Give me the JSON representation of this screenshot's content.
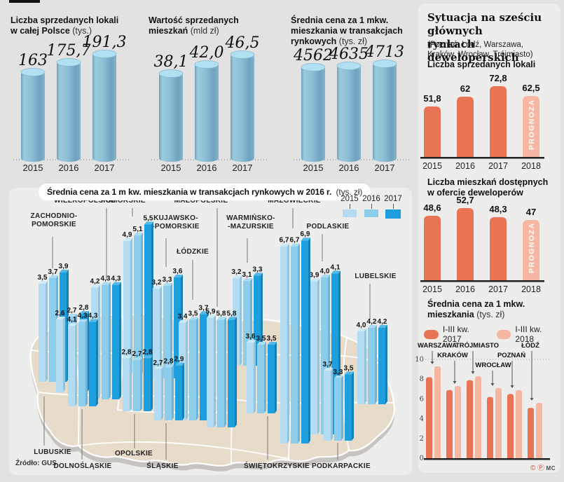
{
  "colors": {
    "page_bg": "#e2e2e2",
    "card_bg": "#ededec",
    "land": "#e7dbc9",
    "land_side": "#c7c4bf",
    "cylinder_body": "#84b6d0",
    "cylinder_top": "#b0e0f2",
    "orange": "#e87355",
    "orange_light": "#f6b7a2",
    "blue_2015": "#b3dcf2",
    "blue_2016": "#8dcdec",
    "blue_2017": "#1d9fdd"
  },
  "panel": {
    "title_lines": [
      "Sytuacja na sześciu głównych",
      "rynkach deweloperskich"
    ],
    "subtitle_lines": [
      "(Poznań, Łódź, Warszawa,",
      "Kraków, Wrocław, Trójmiasto)"
    ],
    "prognoza": "PROGNOZA",
    "credit_marks": [
      "©",
      "Ⓟ"
    ],
    "credit": "MC"
  },
  "chart_data": {
    "national": [
      {
        "type": "bar",
        "title_lines": [
          "Liczba sprzedanych lokali",
          "w całej Polsce"
        ],
        "unit": "(tys.)",
        "categories": [
          "2015",
          "2016",
          "2017"
        ],
        "values": [
          163,
          175.7,
          191.3
        ],
        "labels": [
          "163",
          "175,7",
          "191,3"
        ],
        "x": 15,
        "cx": [
          47,
          98,
          149
        ],
        "heights": [
          125,
          139,
          151
        ]
      },
      {
        "type": "bar",
        "title_lines": [
          "Wartość sprzedanych",
          "mieszkań"
        ],
        "unit": "(mld zł)",
        "categories": [
          "2015",
          "2016",
          "2017"
        ],
        "values": [
          38.1,
          42.0,
          46.5
        ],
        "labels": [
          "38,1",
          "42,0",
          "46,5"
        ],
        "x": 212,
        "cx": [
          244,
          295,
          346
        ],
        "heights": [
          123,
          136,
          150
        ]
      },
      {
        "type": "bar",
        "title_lines": [
          "Średnia cena za 1 mkw.",
          "mieszkania w transakcjach",
          "rynkowych"
        ],
        "unit": "(tys. zł)",
        "categories": [
          "2015",
          "2016",
          "2017"
        ],
        "values": [
          4562,
          4635,
          4713
        ],
        "labels": [
          "4562",
          "4635",
          "4713"
        ],
        "x": 415,
        "cx": [
          447,
          498,
          549
        ],
        "heights": [
          132,
          134,
          137
        ]
      }
    ],
    "map_regional": {
      "type": "bar",
      "title": "Średnia cena za 1 m kw. mieszkania w transakcjach rynkowych w 2016 r.",
      "unit": "(tys. zł)",
      "source": "Źródło: GUS",
      "legend_years": [
        "2015",
        "2016",
        "2017"
      ],
      "regions": [
        {
          "name_lines": [
            "ZACHODNIO-",
            "POMORSKIE"
          ],
          "label_x": 77,
          "label_y": 311,
          "leader": [
            75,
            338,
            383
          ],
          "x": 55,
          "base": 545,
          "scale": 40,
          "values": [
            3.5,
            3.7,
            3.9
          ],
          "labels": [
            "3,5",
            "3,7",
            "3,9"
          ]
        },
        {
          "name_lines": [
            "POMORSKIE"
          ],
          "label_x": 176,
          "label_y": 289,
          "leader": [
            189,
            297,
            309
          ],
          "x": 176,
          "base": 535,
          "scale": 39,
          "values": [
            4.9,
            5.1,
            5.5
          ],
          "labels": [
            "4,9",
            "5,1",
            "5,5"
          ]
        },
        {
          "name_lines": [
            "WIELKOPOLSKIE"
          ],
          "label_x": 121,
          "label_y": 289,
          "leader": [
            152,
            297,
            399
          ],
          "x": 130,
          "base": 570,
          "scale": 38,
          "values": [
            4.2,
            4.3,
            4.3
          ],
          "labels": [
            "4,2",
            "4,3",
            "4,3"
          ]
        },
        {
          "name_lines": [
            "KUJAWSKO-",
            "-POMORSKIE"
          ],
          "label_x": 251,
          "label_y": 314,
          "leader": [
            237,
            340,
            381
          ],
          "x": 218,
          "base": 540,
          "scale": 40,
          "values": [
            3.2,
            3.3,
            3.6
          ],
          "labels": [
            "3,2",
            "3,3",
            "3,6"
          ]
        },
        {
          "name_lines": [
            "ŁÓDZKIE"
          ],
          "label_x": 275,
          "label_y": 362,
          "leader": [
            275,
            371,
            428
          ],
          "x": 255,
          "base": 600,
          "scale": 41,
          "values": [
            3.4,
            3.5,
            3.7
          ],
          "labels": [
            "3,4",
            "3,5",
            "3,7"
          ]
        },
        {
          "name_lines": [
            "MAŁOPOLSKIE"
          ],
          "label_x": 287,
          "label_y": 289,
          "leader": [
            310,
            297,
            438
          ],
          "x": 295,
          "base": 610,
          "scale": 26.5,
          "values": [
            5.9,
            5.8,
            5.8
          ],
          "labels": [
            "5,9",
            "5,8",
            "5,8"
          ]
        },
        {
          "name_lines": [
            "WARMIŃSKO-",
            "-MAZURSKIE"
          ],
          "label_x": 358,
          "label_y": 314,
          "leader": [
            353,
            340,
            375
          ],
          "x": 332,
          "base": 522,
          "scale": 39,
          "values": [
            3.2,
            3.1,
            3.3
          ],
          "labels": [
            "3,2",
            "3,1",
            "3,3"
          ]
        },
        {
          "name_lines": [
            "MAZOWIECKIE"
          ],
          "label_x": 420,
          "label_y": 289,
          "leader": [
            418,
            297,
            326
          ],
          "x": 400,
          "base": 633,
          "scale": 42,
          "values": [
            6.7,
            6.7,
            6.9
          ],
          "labels": [
            "6,7",
            "6,7",
            "6,9"
          ]
        },
        {
          "name_lines": [
            "PODLASKIE"
          ],
          "label_x": 468,
          "label_y": 326,
          "leader": [
            460,
            334,
            373
          ],
          "x": 443,
          "base": 620,
          "scale": 56,
          "values": [
            3.9,
            4.0,
            4.1
          ],
          "labels": [
            "3,9",
            "4,0",
            "4,1"
          ]
        },
        {
          "name_lines": [
            "LUBELSKIE"
          ],
          "label_x": 536,
          "label_y": 397,
          "leader": [
            528,
            405,
            456
          ],
          "x": 510,
          "base": 577,
          "scale": 26,
          "values": [
            4.0,
            4.2,
            4.2
          ],
          "labels": [
            "4,0",
            "4,2",
            "4,2"
          ]
        },
        {
          "name_lines": [
            "LUBUSKIE"
          ],
          "label_x": 75,
          "label_y": 648,
          "leader": [
            63,
            566,
            636
          ],
          "x": 80,
          "base": 560,
          "scale": 40,
          "pitch": 17,
          "values": [
            2.6,
            2.7,
            2.8
          ],
          "labels": [
            "2,6",
            "2,7",
            "2,8"
          ]
        },
        {
          "name_lines": [
            "DOLNOŚLĄSKIE"
          ],
          "label_x": 118,
          "label_y": 668,
          "leader": [
            117,
            584,
            656
          ],
          "x": 97,
          "base": 580,
          "scale": 28,
          "values": [
            4.1,
            4.3,
            4.3
          ],
          "labels": [
            "4,1",
            "4,3",
            "4,3"
          ]
        },
        {
          "name_lines": [
            "OPOLSKIE"
          ],
          "label_x": 191,
          "label_y": 650,
          "leader": [
            192,
            591,
            640
          ],
          "x": 175,
          "base": 587,
          "scale": 27,
          "values": [
            2.8,
            2.7,
            2.8
          ],
          "labels": [
            "2,8",
            "2,7",
            "2,8"
          ]
        },
        {
          "name_lines": [
            "ŚLĄSKIE"
          ],
          "label_x": 232,
          "label_y": 668,
          "leader": [
            237,
            604,
            656
          ],
          "x": 220,
          "base": 600,
          "scale": 27,
          "values": [
            2.7,
            2.8,
            2.9
          ],
          "labels": [
            "2,7",
            "2,8",
            "2,9"
          ]
        },
        {
          "name_lines": [
            "ŚWIĘTOKRZYSKIE"
          ],
          "label_x": 395,
          "label_y": 668,
          "leader": [
            382,
            594,
            656
          ],
          "x": 352,
          "base": 590,
          "scale": 28,
          "values": [
            3.6,
            3.5,
            3.5
          ],
          "labels": [
            "3,6",
            "3,5",
            "3,5"
          ]
        },
        {
          "name_lines": [
            "PODKARPACKIE"
          ],
          "label_x": 487,
          "label_y": 668,
          "leader": [
            482,
            632,
            656
          ],
          "x": 462,
          "base": 629,
          "scale": 27,
          "values": [
            3.7,
            3.3,
            3.5
          ],
          "labels": [
            "3,7",
            "3,3",
            "3,5"
          ]
        }
      ]
    },
    "panel_chart1": {
      "type": "bar",
      "heading_lines": [
        "Liczba sprzedanych lokali"
      ],
      "categories": [
        "2015",
        "2016",
        "2017",
        "2018"
      ],
      "values": [
        51.8,
        62,
        72.8,
        62.5
      ],
      "labels": [
        "51,8",
        "62",
        "72,8",
        "62,5"
      ],
      "heights": [
        72,
        86,
        101,
        87
      ],
      "forecast_index": 3
    },
    "panel_chart2": {
      "type": "bar",
      "heading_lines": [
        "Liczba mieszkań dostępnych",
        "w ofercie deweloperów"
      ],
      "categories": [
        "2015",
        "2016",
        "2017",
        "2018"
      ],
      "values": [
        48.6,
        52.7,
        48.3,
        47
      ],
      "labels": [
        "48,6",
        "52,7",
        "48,3",
        "47"
      ],
      "heights": [
        92,
        103,
        90,
        86
      ],
      "forecast_index": 3
    },
    "panel_cities": {
      "type": "grouped-bar",
      "heading_lines": [
        "Średnia cena za 1 mkw.",
        "mieszkania"
      ],
      "unit": "(tys. zł)",
      "legend": [
        {
          "label": "I-III kw. 2017",
          "color": "#e87355"
        },
        {
          "label": "I-III kw. 2018",
          "color": "#f6b7a2"
        }
      ],
      "ylim": [
        0,
        10
      ],
      "yticks": [
        "0",
        "2",
        "4",
        "6",
        "8",
        "10"
      ],
      "cities": [
        {
          "name": "WARSZAWA",
          "v2017": 8.2,
          "v2018": 9.3,
          "lx": 27,
          "ly": 491,
          "ax": 20,
          "ay2": 514
        },
        {
          "name": "KRAKÓW",
          "v2017": 6.9,
          "v2018": 7.3,
          "lx": 49,
          "ly": 505,
          "ax": 52,
          "ay2": 542
        },
        {
          "name": "TRÓJMIASTO",
          "v2017": 7.9,
          "v2018": 8.3,
          "lx": 84,
          "ly": 491,
          "ax": 78,
          "ay2": 528
        },
        {
          "name": "WROCŁAW",
          "v2017": 6.2,
          "v2018": 7.1,
          "lx": 107,
          "ly": 519,
          "ax": 106,
          "ay2": 545
        },
        {
          "name": "POZNAŃ",
          "v2017": 6.5,
          "v2018": 6.9,
          "lx": 133,
          "ly": 505,
          "ax": 134,
          "ay2": 548
        },
        {
          "name": "ŁÓDŹ",
          "v2017": 5.1,
          "v2018": 5.6,
          "lx": 160,
          "ly": 491,
          "ax": 162,
          "ay2": 566
        }
      ]
    }
  }
}
